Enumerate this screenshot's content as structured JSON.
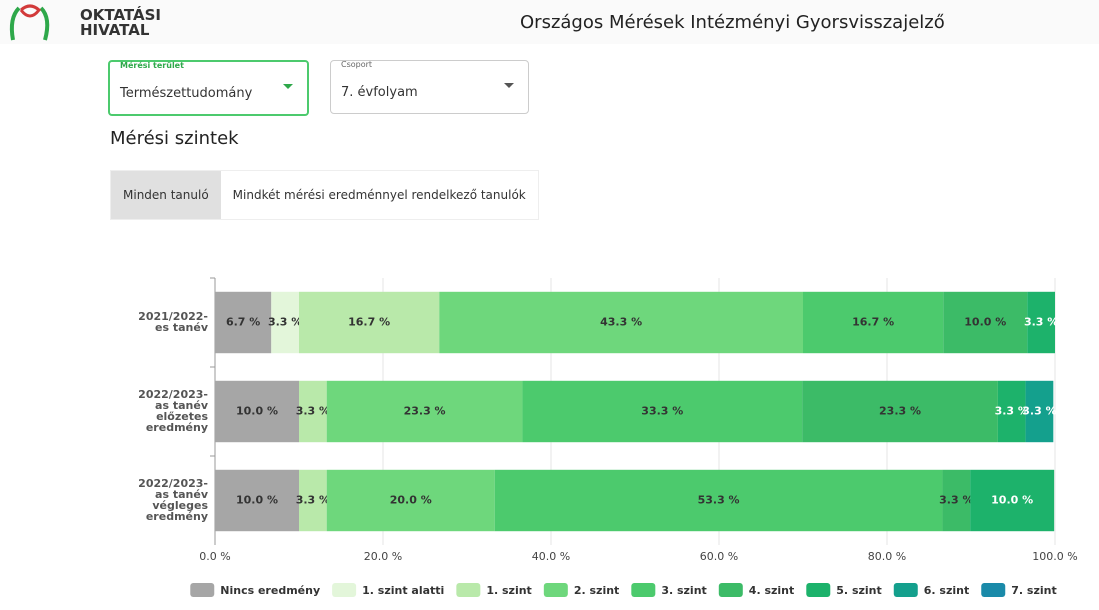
{
  "header": {
    "logo": [
      "OKTATÁSI",
      "HIVATAL"
    ],
    "title": "Országos Mérések Intézményi Gyorsvisszajelző"
  },
  "filters": [
    {
      "label": "Mérési terület",
      "value": "Természettudomány"
    },
    {
      "label": "Csoport",
      "value": "7. évfolyam"
    }
  ],
  "section_title": "Mérési szintek",
  "tabs": [
    "Minden tanuló",
    "Mindkét mérési eredménnyel rendelkező tanulók"
  ],
  "chart_data": {
    "type": "stacked_hbar",
    "categories": [
      "2021/2022-es tanév",
      "2022/2023-as tanév előzetes eredmény",
      "2022/2023-as tanév végleges eredmény"
    ],
    "series": [
      {
        "name": "Nincs eredmény",
        "color": "#a6a6a6",
        "values": [
          6.7,
          10.0,
          10.0
        ],
        "value_labels": [
          "6.7 %",
          "10.0 %",
          "10.0 %"
        ]
      },
      {
        "name": "1. szint alatti",
        "color": "#e3f6da",
        "values": [
          3.3,
          0,
          0
        ],
        "value_labels": [
          "3.3 %",
          null,
          null
        ]
      },
      {
        "name": "1. szint",
        "color": "#b9e9aa",
        "values": [
          16.7,
          3.3,
          3.3
        ],
        "value_labels": [
          "16.7 %",
          "3.3 %",
          "3.3 %"
        ]
      },
      {
        "name": "2. szint",
        "color": "#6ed77c",
        "values": [
          43.3,
          23.3,
          20.0
        ],
        "value_labels": [
          "43.3 %",
          "23.3 %",
          "20.0 %"
        ]
      },
      {
        "name": "3. szint",
        "color": "#4cca6d",
        "values": [
          16.7,
          33.3,
          53.3
        ],
        "value_labels": [
          "16.7 %",
          "33.3 %",
          "53.3 %"
        ]
      },
      {
        "name": "4. szint",
        "color": "#3cbb67",
        "values": [
          10.0,
          23.3,
          3.3
        ],
        "value_labels": [
          "10.0 %",
          "23.3 %",
          "3.3 %"
        ]
      },
      {
        "name": "5. szint",
        "color": "#1db26b",
        "values": [
          3.3,
          3.3,
          10.0
        ],
        "value_labels": [
          "3.3 %",
          "3.3 %",
          "10.0 %"
        ]
      },
      {
        "name": "6. szint",
        "color": "#14a08d",
        "values": [
          0,
          3.3,
          0
        ],
        "value_labels": [
          null,
          "3.3 %",
          null
        ]
      },
      {
        "name": "7. szint",
        "color": "#1a8aa9",
        "values": [
          0,
          0,
          0
        ],
        "value_labels": [
          null,
          null,
          null
        ]
      }
    ],
    "xlim": [
      0,
      100
    ],
    "xticks": [
      {
        "value": 0,
        "label": "0.0 %"
      },
      {
        "value": 20,
        "label": "20.0 %"
      },
      {
        "value": 40,
        "label": "40.0 %"
      },
      {
        "value": 60,
        "label": "60.0 %"
      },
      {
        "value": 80,
        "label": "80.0 %"
      },
      {
        "value": 100,
        "label": "100.0 %"
      }
    ],
    "grid": true,
    "legend": "bottom"
  }
}
